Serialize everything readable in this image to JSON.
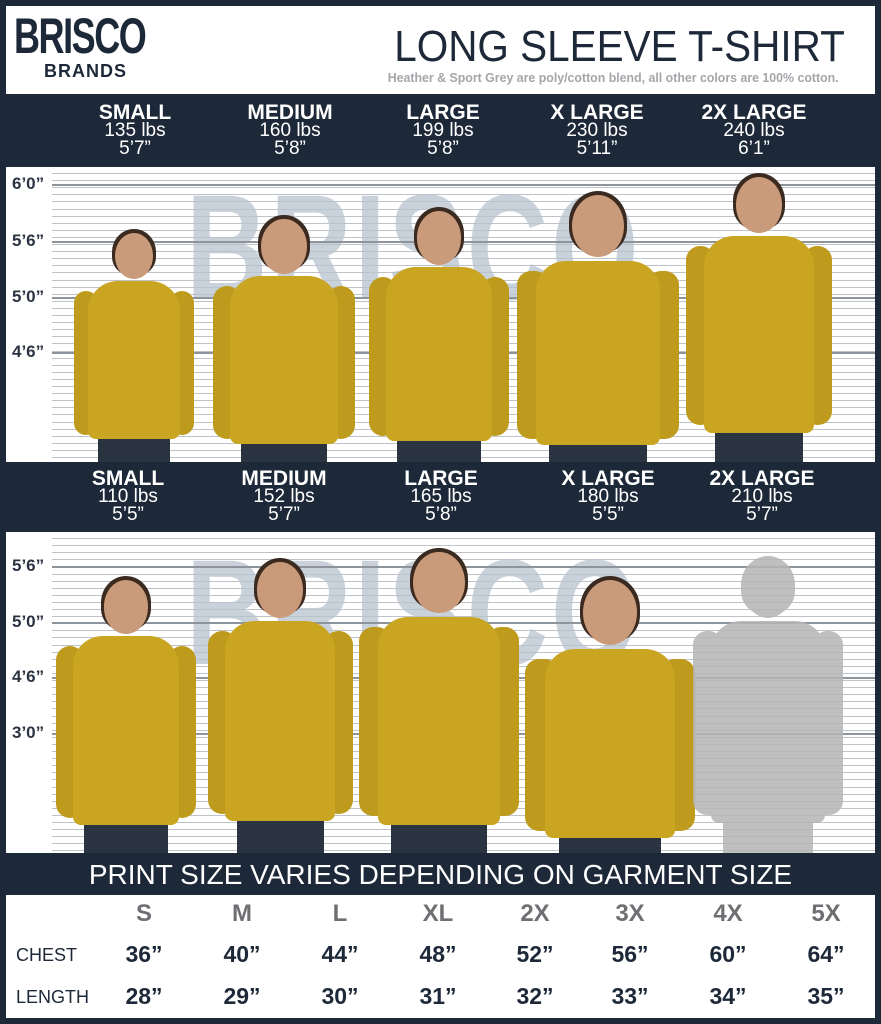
{
  "brand": {
    "logo_top": "BRISCO",
    "logo_bottom": "BRANDS"
  },
  "header": {
    "title": "LONG SLEEVE T-SHIRT",
    "subtitle": "Heather & Sport Grey are poly/cotton blend, all other colors are 100% cotton."
  },
  "mens": {
    "sizes": [
      {
        "size": "SMALL",
        "weight": "135 lbs",
        "height": "5’7”"
      },
      {
        "size": "MEDIUM",
        "weight": "160 lbs",
        "height": "5’8”"
      },
      {
        "size": "LARGE",
        "weight": "199 lbs",
        "height": "5’8”"
      },
      {
        "size": "X LARGE",
        "weight": "230 lbs",
        "height": "5’11”"
      },
      {
        "size": "2X LARGE",
        "weight": "240 lbs",
        "height": "6’1”"
      }
    ],
    "height_marks": [
      "6’0”",
      "5’6”",
      "5’0”",
      "4’6”"
    ]
  },
  "womens": {
    "sizes": [
      {
        "size": "SMALL",
        "weight": "110 lbs",
        "height": "5’5”"
      },
      {
        "size": "MEDIUM",
        "weight": "152 lbs",
        "height": "5’7”"
      },
      {
        "size": "LARGE",
        "weight": "165 lbs",
        "height": "5’8”"
      },
      {
        "size": "X LARGE",
        "weight": "180 lbs",
        "height": "5’5”"
      },
      {
        "size": "2X LARGE",
        "weight": "210 lbs",
        "height": "5’7”"
      }
    ],
    "height_marks": [
      "5’6”",
      "5’0”",
      "4’6”",
      "3’0”"
    ]
  },
  "print_banner": "PRINT SIZE VARIES DEPENDING ON GARMENT SIZE",
  "size_table": {
    "columns": [
      "S",
      "M",
      "L",
      "XL",
      "2X",
      "3X",
      "4X",
      "5X"
    ],
    "rows": [
      {
        "label": "CHEST",
        "values": [
          "36”",
          "40”",
          "44”",
          "48”",
          "52”",
          "56”",
          "60”",
          "64”"
        ]
      },
      {
        "label": "LENGTH",
        "values": [
          "28”",
          "29”",
          "30”",
          "31”",
          "32”",
          "33”",
          "34”",
          "35”"
        ]
      }
    ]
  },
  "colors": {
    "navy": "#1d2838",
    "shirt": "#c9a522",
    "silhouette": "#b5b5b5",
    "grey_text": "#a4a6aa"
  }
}
